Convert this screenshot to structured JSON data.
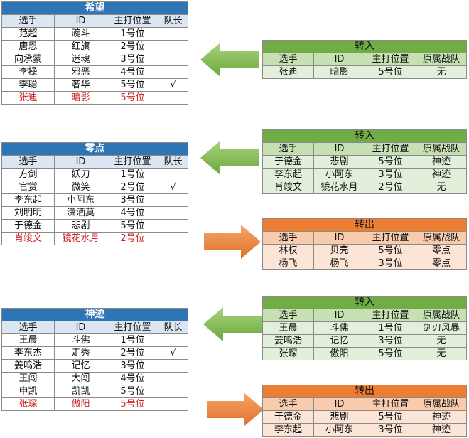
{
  "colors": {
    "team_header": "#2e75b6",
    "team_col_header": "#dce6f2",
    "transfer_in_header": "#70ad47",
    "transfer_in_cols": "#c6e0b4",
    "transfer_in_rows": "#e2efda",
    "transfer_out_header": "#ed7d31",
    "transfer_out_cols": "#f8cbad",
    "transfer_out_rows": "#fce4d6",
    "new_player_text": "#d02020",
    "arrow_in": "#7ab648",
    "arrow_out": "#ed7d31"
  },
  "team_cols": [
    "选手",
    "ID",
    "主打位置",
    "队长"
  ],
  "transfer_cols": [
    "选手",
    "ID",
    "主打位置",
    "原属战队"
  ],
  "teams": [
    {
      "name": "希望",
      "rows": [
        [
          "范超",
          "豌斗",
          "1号位",
          ""
        ],
        [
          "唐恩",
          "红旗",
          "2号位",
          ""
        ],
        [
          "向承蒙",
          "迷魂",
          "3号位",
          ""
        ],
        [
          "李操",
          "邪恶",
          "4号位",
          ""
        ],
        [
          "李聪",
          "奢华",
          "5号位",
          "√"
        ],
        [
          "张迪",
          "暗影",
          "5号位",
          ""
        ]
      ]
    },
    {
      "name": "零点",
      "rows": [
        [
          "方剑",
          "妖刀",
          "1号位",
          ""
        ],
        [
          "官赏",
          "微笑",
          "2号位",
          "√"
        ],
        [
          "李东起",
          "小阿东",
          "3号位",
          ""
        ],
        [
          "刘明明",
          "潇洒莫",
          "4号位",
          ""
        ],
        [
          "于德金",
          "悲剧",
          "5号位",
          ""
        ],
        [
          "肖竣文",
          "镜花水月",
          "2号位",
          ""
        ]
      ]
    },
    {
      "name": "神迹",
      "rows": [
        [
          "王晨",
          "斗佛",
          "1号位",
          ""
        ],
        [
          "李东杰",
          "走秀",
          "2号位",
          "√"
        ],
        [
          "姜鸣浩",
          "记忆",
          "3号位",
          ""
        ],
        [
          "王闯",
          "大闯",
          "4号位",
          ""
        ],
        [
          "申凯",
          "凯凯",
          "5号位",
          ""
        ],
        [
          "张琛",
          "傲阳",
          "5号位",
          ""
        ]
      ]
    }
  ],
  "transfers": [
    {
      "label": "转入",
      "rows": [
        [
          "张迪",
          "暗影",
          "5号位",
          "无"
        ]
      ]
    },
    {
      "label": "转入",
      "rows": [
        [
          "于德金",
          "悲剧",
          "5号位",
          "神迹"
        ],
        [
          "李东起",
          "小阿东",
          "3号位",
          "神迹"
        ],
        [
          "肖竣文",
          "镜花水月",
          "2号位",
          "无"
        ]
      ]
    },
    {
      "label": "转出",
      "rows": [
        [
          "林权",
          "贝壳",
          "5号位",
          "零点"
        ],
        [
          "杨飞",
          "杨飞",
          "3号位",
          "零点"
        ]
      ]
    },
    {
      "label": "转入",
      "rows": [
        [
          "王晨",
          "斗佛",
          "1号位",
          "剑刃风暴"
        ],
        [
          "姜鸣浩",
          "记忆",
          "3号位",
          "无"
        ],
        [
          "张琛",
          "傲阳",
          "5号位",
          "无"
        ]
      ]
    },
    {
      "label": "转出",
      "rows": [
        [
          "于德金",
          "悲剧",
          "5号位",
          "神迹"
        ],
        [
          "李东起",
          "小阿东",
          "3号位",
          "神迹"
        ]
      ]
    }
  ],
  "icons": {
    "in": "arrow-left-icon",
    "out": "arrow-right-icon"
  }
}
